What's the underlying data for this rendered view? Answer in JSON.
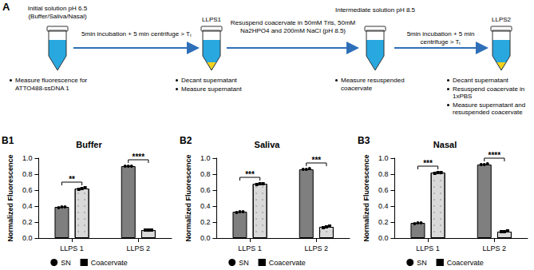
{
  "panel_a": {
    "label": "A",
    "steps": [
      {
        "title": [
          "Initial solution pH 6.5",
          "(Buffer/Saliva/Nasal)"
        ],
        "notes": [
          "Measure fluorescence for ATTO488-ssDNA 1"
        ]
      },
      {
        "title": [
          "LLPS1"
        ],
        "notes": [
          "Decant supernatant",
          "Measure supernatant"
        ]
      },
      {
        "title": [
          "Intermediate solution pH 8.5"
        ],
        "notes": [
          "Measure resuspended coacervate"
        ]
      },
      {
        "title": [
          "LLPS2"
        ],
        "notes": [
          "Decant supernatant",
          "Resuspend coacervate in 1xPBS",
          "Measure supernatant and resuspended coacervate"
        ]
      }
    ],
    "arrows": [
      "5min incubation + 5 min centrifuge > Tₜ",
      "Resuspend coacervate in 50mM Tris, 50mM Na2HPO4 and 200mM NaCl (pH 8.5)",
      "5min incubation + 5 min centrifuge > Tₜ"
    ]
  },
  "chart_data": [
    {
      "type": "bar",
      "panel": "B1",
      "title": "Buffer",
      "y_label": "Normalized Fluorescence",
      "categories": [
        "LLPS 1",
        "LLPS 2"
      ],
      "series": [
        {
          "name": "SN",
          "color": "#7f7f7f",
          "marker": "circle",
          "values": [
            0.39,
            0.9
          ],
          "points": [
            [
              0.38,
              0.39,
              0.39
            ],
            [
              0.9,
              0.9,
              0.9
            ]
          ]
        },
        {
          "name": "Coacervate",
          "color": "#d9d9d9",
          "marker": "square",
          "values": [
            0.62,
            0.1
          ],
          "points": [
            [
              0.61,
              0.62,
              0.63
            ],
            [
              0.1,
              0.1,
              0.1
            ]
          ]
        }
      ],
      "annotations": [
        {
          "category": "LLPS 1",
          "text": "**"
        },
        {
          "category": "LLPS 2",
          "text": "****"
        }
      ],
      "ylim": [
        0,
        1
      ],
      "yticks": [
        {
          "value": 0,
          "label": "0.0"
        },
        0.2,
        0.4,
        0.6,
        0.8,
        {
          "value": 1,
          "label": "1.0"
        }
      ],
      "grid": false,
      "legend": "bottom"
    },
    {
      "type": "bar",
      "panel": "B2",
      "title": "Saliva",
      "y_label": "Normalized Fluorescence",
      "categories": [
        "LLPS 1",
        "LLPS 2"
      ],
      "series": [
        {
          "name": "SN",
          "color": "#7f7f7f",
          "marker": "circle",
          "values": [
            0.33,
            0.86
          ],
          "points": [
            [
              0.32,
              0.33,
              0.33
            ],
            [
              0.86,
              0.86,
              0.87
            ]
          ]
        },
        {
          "name": "Coacervate",
          "color": "#d9d9d9",
          "marker": "square",
          "values": [
            0.68,
            0.14
          ],
          "points": [
            [
              0.67,
              0.68,
              0.68
            ],
            [
              0.13,
              0.14,
              0.15
            ]
          ]
        }
      ],
      "annotations": [
        {
          "category": "LLPS 1",
          "text": "***"
        },
        {
          "category": "LLPS 2",
          "text": "***"
        }
      ],
      "ylim": [
        0,
        1
      ],
      "yticks": [
        {
          "value": 0,
          "label": "0.0"
        },
        0.2,
        0.4,
        0.6,
        0.8,
        {
          "value": 1,
          "label": "1.0"
        }
      ],
      "grid": false,
      "legend": "bottom"
    },
    {
      "type": "bar",
      "panel": "B3",
      "title": "Nasal",
      "y_label": "Normalized Fluorescence",
      "categories": [
        "LLPS 1",
        "LLPS 2"
      ],
      "series": [
        {
          "name": "SN",
          "color": "#7f7f7f",
          "marker": "circle",
          "values": [
            0.19,
            0.92
          ],
          "points": [
            [
              0.18,
              0.19,
              0.19
            ],
            [
              0.92,
              0.92,
              0.93
            ]
          ]
        },
        {
          "name": "Coacervate",
          "color": "#d9d9d9",
          "marker": "square",
          "values": [
            0.82,
            0.08
          ],
          "points": [
            [
              0.81,
              0.82,
              0.82
            ],
            [
              0.08,
              0.08,
              0.09
            ]
          ]
        }
      ],
      "annotations": [
        {
          "category": "LLPS 1",
          "text": "***"
        },
        {
          "category": "LLPS 2",
          "text": "****"
        }
      ],
      "ylim": [
        0,
        1
      ],
      "yticks": [
        {
          "value": 0,
          "label": "0.0"
        },
        0.2,
        0.4,
        0.6,
        0.8,
        {
          "value": 1,
          "label": "1.0"
        }
      ],
      "grid": false,
      "legend": "bottom"
    }
  ]
}
